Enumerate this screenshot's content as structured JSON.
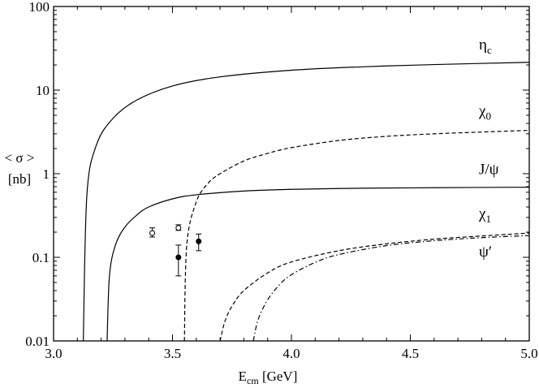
{
  "chart_data": {
    "type": "line",
    "xlabel": "E_cm [GeV]",
    "xlabel_main": "E",
    "xlabel_sub": "cm",
    "xlabel_unit": " [GeV]",
    "ylabel_line1": "< σ >",
    "ylabel_line2": "[nb]",
    "xlim": [
      3.0,
      5.0
    ],
    "ylim": [
      0.01,
      100
    ],
    "yscale": "log",
    "grid": false,
    "x_ticks": [
      "3.0",
      "3.5",
      "4.0",
      "4.5",
      "5.0"
    ],
    "y_ticks": [
      "0.01",
      "0.1",
      "1",
      "10",
      "100"
    ],
    "series": [
      {
        "name": "η_c",
        "label_main": "η",
        "label_sub": "c",
        "style": "solid",
        "x": [
          3.125,
          3.14,
          3.18,
          3.25,
          3.35,
          3.5,
          3.7,
          4.0,
          4.3,
          4.6,
          5.0
        ],
        "y": [
          0.01,
          0.55,
          2.2,
          4.6,
          7.6,
          11.2,
          14.4,
          17.3,
          19.0,
          20.2,
          21.5
        ]
      },
      {
        "name": "χ_0",
        "label_main": "χ",
        "label_sub": "0",
        "style": "dashed",
        "x": [
          3.55,
          3.56,
          3.6,
          3.65,
          3.7,
          3.8,
          3.9,
          4.0,
          4.2,
          4.4,
          4.6,
          4.8,
          5.0
        ],
        "y": [
          0.01,
          0.14,
          0.46,
          0.77,
          1.0,
          1.42,
          1.75,
          2.05,
          2.5,
          2.8,
          3.0,
          3.15,
          3.3
        ]
      },
      {
        "name": "J/ψ",
        "label_main": "J/ψ",
        "label_sub": "",
        "style": "solid",
        "x": [
          3.225,
          3.235,
          3.26,
          3.3,
          3.35,
          3.4,
          3.5,
          3.6,
          3.8,
          4.0,
          4.3,
          4.6,
          5.0
        ],
        "y": [
          0.01,
          0.06,
          0.14,
          0.23,
          0.32,
          0.4,
          0.5,
          0.56,
          0.62,
          0.65,
          0.67,
          0.68,
          0.69
        ]
      },
      {
        "name": "χ_1",
        "label_main": "χ",
        "label_sub": "1",
        "style": "dashed",
        "x": [
          3.7,
          3.72,
          3.75,
          3.8,
          3.9,
          4.0,
          4.2,
          4.4,
          4.6,
          4.8,
          5.0
        ],
        "y": [
          0.01,
          0.017,
          0.026,
          0.04,
          0.065,
          0.088,
          0.12,
          0.145,
          0.165,
          0.18,
          0.195
        ]
      },
      {
        "name": "ψ′",
        "label_main": "ψ′",
        "label_sub": "",
        "style": "dashdot",
        "x": [
          3.84,
          3.86,
          3.9,
          3.95,
          4.0,
          4.1,
          4.2,
          4.4,
          4.6,
          4.8,
          5.0
        ],
        "y": [
          0.01,
          0.018,
          0.031,
          0.047,
          0.062,
          0.087,
          0.108,
          0.138,
          0.158,
          0.172,
          0.182
        ]
      }
    ],
    "data_points": [
      {
        "x": 3.415,
        "y": 0.195,
        "err_low": 0.175,
        "err_high": 0.225,
        "marker": "open"
      },
      {
        "x": 3.525,
        "y": 0.225,
        "err_low": 0.21,
        "err_high": 0.245,
        "marker": "open"
      },
      {
        "x": 3.525,
        "y": 0.1,
        "err_low": 0.06,
        "err_high": 0.14,
        "marker": "filled"
      },
      {
        "x": 3.61,
        "y": 0.155,
        "err_low": 0.12,
        "err_high": 0.19,
        "marker": "filled"
      }
    ]
  }
}
